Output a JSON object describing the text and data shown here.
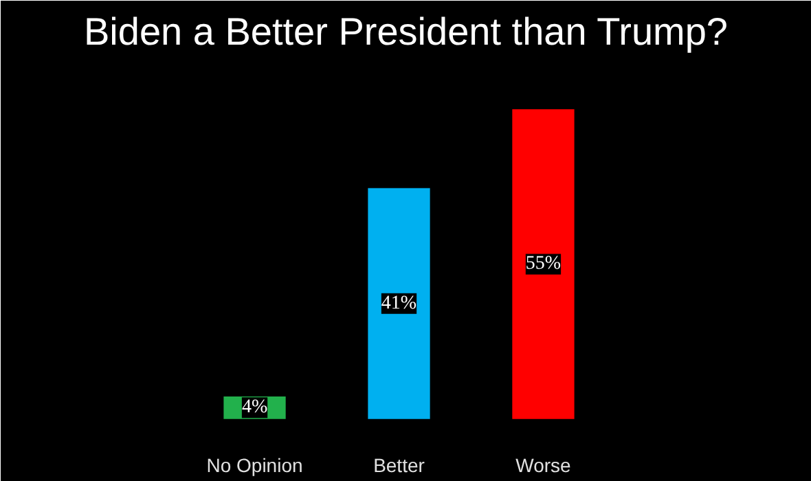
{
  "chart_data": {
    "type": "bar",
    "title": "Biden a Better President than Trump?",
    "categories": [
      "No Opinion",
      "Better",
      "Worse"
    ],
    "values": [
      4,
      41,
      55
    ],
    "colors": [
      "#22b14c",
      "#00b0f0",
      "#ff0000"
    ],
    "value_labels": [
      "4%",
      "41%",
      "55%"
    ]
  }
}
